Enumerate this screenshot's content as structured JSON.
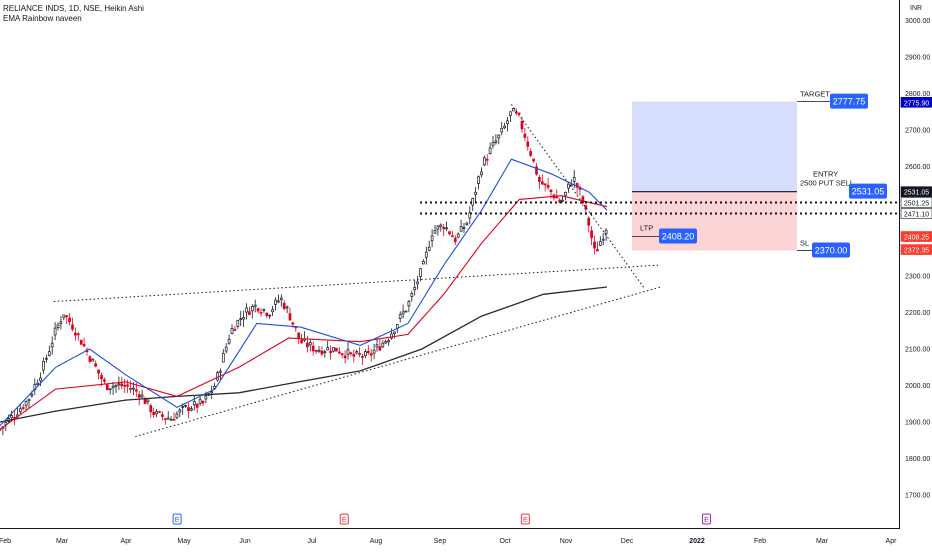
{
  "header": {
    "symbol_line": "RELIANCE INDS, 1D, NSE, Heikin Ashi",
    "indicator_line": "EMA Rainbow naveen"
  },
  "currency": "INR",
  "chart_data": {
    "type": "candlestick",
    "style": "Heikin Ashi",
    "y_axis": {
      "range": [
        1665,
        3040
      ],
      "ticks": [
        1700,
        1800,
        1900,
        2000,
        2100,
        2200,
        2300,
        2400,
        2500,
        2600,
        2700,
        2800,
        2900,
        3000
      ],
      "tick_labels": [
        "1700.00",
        "1800.00",
        "1900.00",
        "2000.00",
        "2100.00",
        "2200.00",
        "2300.00",
        "2400.00",
        "2500.00",
        "2600.00",
        "2700.00",
        "2800.00",
        "2900.00",
        "3000.00"
      ]
    },
    "x_axis": {
      "labels": [
        "Feb",
        "Mar",
        "Apr",
        "May",
        "Jun",
        "Jul",
        "Aug",
        "Sep",
        "Oct",
        "Nov",
        "Dec",
        "2022",
        "Feb",
        "Mar",
        "Apr"
      ],
      "bold_labels": [
        "2022"
      ]
    },
    "price_path": [
      {
        "date": "2021-02-01",
        "price": 1880
      },
      {
        "date": "2021-02-08",
        "price": 1920
      },
      {
        "date": "2021-02-15",
        "price": 1960
      },
      {
        "date": "2021-02-22",
        "price": 2040
      },
      {
        "date": "2021-03-01",
        "price": 2150
      },
      {
        "date": "2021-03-05",
        "price": 2200
      },
      {
        "date": "2021-03-10",
        "price": 2160
      },
      {
        "date": "2021-03-18",
        "price": 2080
      },
      {
        "date": "2021-03-26",
        "price": 2000
      },
      {
        "date": "2021-04-05",
        "price": 2000
      },
      {
        "date": "2021-04-12",
        "price": 1980
      },
      {
        "date": "2021-04-20",
        "price": 1920
      },
      {
        "date": "2021-04-28",
        "price": 1910
      },
      {
        "date": "2021-05-06",
        "price": 1940
      },
      {
        "date": "2021-05-14",
        "price": 1950
      },
      {
        "date": "2021-05-20",
        "price": 2000
      },
      {
        "date": "2021-05-28",
        "price": 2150
      },
      {
        "date": "2021-06-04",
        "price": 2200
      },
      {
        "date": "2021-06-10",
        "price": 2220
      },
      {
        "date": "2021-06-16",
        "price": 2200
      },
      {
        "date": "2021-06-22",
        "price": 2240
      },
      {
        "date": "2021-06-26",
        "price": 2200
      },
      {
        "date": "2021-07-02",
        "price": 2120
      },
      {
        "date": "2021-07-10",
        "price": 2100
      },
      {
        "date": "2021-07-20",
        "price": 2100
      },
      {
        "date": "2021-07-28",
        "price": 2080
      },
      {
        "date": "2021-08-05",
        "price": 2080
      },
      {
        "date": "2021-08-15",
        "price": 2130
      },
      {
        "date": "2021-08-25",
        "price": 2220
      },
      {
        "date": "2021-09-02",
        "price": 2330
      },
      {
        "date": "2021-09-06",
        "price": 2420
      },
      {
        "date": "2021-09-12",
        "price": 2440
      },
      {
        "date": "2021-09-18",
        "price": 2400
      },
      {
        "date": "2021-09-24",
        "price": 2450
      },
      {
        "date": "2021-10-01",
        "price": 2600
      },
      {
        "date": "2021-10-06",
        "price": 2650
      },
      {
        "date": "2021-10-12",
        "price": 2700
      },
      {
        "date": "2021-10-16",
        "price": 2750
      },
      {
        "date": "2021-10-20",
        "price": 2730
      },
      {
        "date": "2021-10-25",
        "price": 2650
      },
      {
        "date": "2021-10-30",
        "price": 2560
      },
      {
        "date": "2021-11-05",
        "price": 2530
      },
      {
        "date": "2021-11-10",
        "price": 2500
      },
      {
        "date": "2021-11-16",
        "price": 2570
      },
      {
        "date": "2021-11-20",
        "price": 2520
      },
      {
        "date": "2021-11-24",
        "price": 2440
      },
      {
        "date": "2021-11-27",
        "price": 2360
      },
      {
        "date": "2021-11-30",
        "price": 2400
      },
      {
        "date": "2021-12-03",
        "price": 2440
      }
    ],
    "ema_blue": [
      {
        "date": "2021-02-01",
        "price": 1890
      },
      {
        "date": "2021-03-01",
        "price": 2050
      },
      {
        "date": "2021-03-18",
        "price": 2100
      },
      {
        "date": "2021-04-05",
        "price": 2030
      },
      {
        "date": "2021-05-01",
        "price": 1940
      },
      {
        "date": "2021-05-20",
        "price": 1990
      },
      {
        "date": "2021-06-10",
        "price": 2170
      },
      {
        "date": "2021-07-02",
        "price": 2160
      },
      {
        "date": "2021-08-01",
        "price": 2110
      },
      {
        "date": "2021-08-25",
        "price": 2170
      },
      {
        "date": "2021-09-12",
        "price": 2330
      },
      {
        "date": "2021-10-01",
        "price": 2480
      },
      {
        "date": "2021-10-16",
        "price": 2620
      },
      {
        "date": "2021-11-05",
        "price": 2580
      },
      {
        "date": "2021-11-24",
        "price": 2530
      },
      {
        "date": "2021-12-03",
        "price": 2480
      }
    ],
    "ema_red": [
      {
        "date": "2021-02-01",
        "price": 1880
      },
      {
        "date": "2021-03-01",
        "price": 1990
      },
      {
        "date": "2021-04-05",
        "price": 2010
      },
      {
        "date": "2021-05-01",
        "price": 1970
      },
      {
        "date": "2021-06-01",
        "price": 2050
      },
      {
        "date": "2021-06-26",
        "price": 2130
      },
      {
        "date": "2021-08-01",
        "price": 2120
      },
      {
        "date": "2021-08-25",
        "price": 2140
      },
      {
        "date": "2021-09-12",
        "price": 2250
      },
      {
        "date": "2021-10-01",
        "price": 2390
      },
      {
        "date": "2021-10-20",
        "price": 2510
      },
      {
        "date": "2021-11-10",
        "price": 2520
      },
      {
        "date": "2021-12-03",
        "price": 2490
      }
    ],
    "ema_black": [
      {
        "date": "2021-02-01",
        "price": 1900
      },
      {
        "date": "2021-03-01",
        "price": 1930
      },
      {
        "date": "2021-04-05",
        "price": 1960
      },
      {
        "date": "2021-05-01",
        "price": 1970
      },
      {
        "date": "2021-06-01",
        "price": 1980
      },
      {
        "date": "2021-07-01",
        "price": 2010
      },
      {
        "date": "2021-08-01",
        "price": 2040
      },
      {
        "date": "2021-09-01",
        "price": 2100
      },
      {
        "date": "2021-10-01",
        "price": 2190
      },
      {
        "date": "2021-11-01",
        "price": 2250
      },
      {
        "date": "2021-12-03",
        "price": 2270
      }
    ],
    "trendlines": [
      {
        "from": {
          "date": "2021-02-28",
          "price": 2230
        },
        "to": {
          "date": "2021-12-30",
          "price": 2330
        }
      },
      {
        "from": {
          "date": "2021-04-10",
          "price": 1860
        },
        "to": {
          "date": "2021-12-30",
          "price": 2270
        }
      },
      {
        "from": {
          "date": "2021-10-16",
          "price": 2770
        },
        "to": {
          "date": "2021-12-22",
          "price": 2265
        }
      }
    ],
    "horizontal_levels": [
      2501.25,
      2471.1
    ],
    "targets": {
      "target_label": "TARGET",
      "target_value": "2777.75",
      "entry_label": "ENTRY",
      "entry_note": "2500 PUT SELL",
      "entry_value": "2531.05",
      "sl_label": "SL",
      "sl_value": "2370.00",
      "ltp_label": "LTP",
      "ltp_value": "2408.20",
      "prices": {
        "target": 2777.75,
        "entry": 2531.05,
        "sl": 2370.0,
        "ltp": 2408.2
      }
    },
    "price_scale_tags": [
      {
        "text": "2775.90",
        "price": 2775.9,
        "bg": "#0000cc",
        "fg": "#ffffff"
      },
      {
        "text": "2531.05",
        "price": 2531.05,
        "bg": "#131722",
        "fg": "#ffffff"
      },
      {
        "text": "2501.25",
        "price": 2501.25,
        "bg": "#ffffff",
        "fg": "#131722"
      },
      {
        "text": "2471.10",
        "price": 2471.1,
        "bg": "#ffffff",
        "fg": "#131722"
      },
      {
        "text": "2408.25",
        "price": 2408.25,
        "bg": "#ff3b30",
        "fg": "#ffffff"
      },
      {
        "text": "2372.35",
        "price": 2372.35,
        "bg": "#ff3b30",
        "fg": "#ffffff"
      }
    ],
    "event_markers": [
      {
        "glyph": "E",
        "date": "2021-05-01",
        "color": "#2962ff"
      },
      {
        "glyph": "E",
        "date": "2021-07-24",
        "color": "#f23645"
      },
      {
        "glyph": "E",
        "date": "2021-10-23",
        "color": "#f23645"
      },
      {
        "glyph": "E",
        "date": "2022-01-22",
        "color": "#9c27b0"
      }
    ]
  },
  "colors": {
    "up": "#131722",
    "down": "#e0001b",
    "ema_blue": "#1e4ee0",
    "ema_red": "#e0001b",
    "ema_black": "#2a2a2a",
    "reward_zone": "#cdd5fb",
    "risk_zone": "#fbc9cc",
    "label_blue": "#2962ff"
  }
}
